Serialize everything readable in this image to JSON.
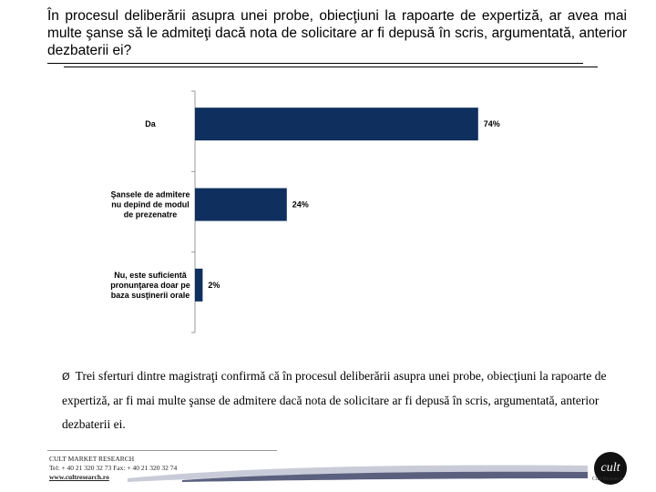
{
  "title": "În procesul deliberării asupra unei probe, obiecţiuni la rapoarte de expertiză, ar avea mai multe şanse să le admiteţi dacă nota de solicitare ar fi depusă în scris, argumentată, anterior dezbaterii ei?",
  "chart_data": {
    "type": "bar",
    "orientation": "horizontal",
    "categories": [
      [
        "Da"
      ],
      [
        "Şansele de admitere",
        "nu depind de modul",
        "de prezenatre"
      ],
      [
        "Nu, este suficientă",
        "pronunţarea doar pe",
        "baza susţinerii orale"
      ]
    ],
    "values": [
      74,
      24,
      2
    ],
    "value_labels": [
      "74%",
      "24%",
      "2%"
    ],
    "xlim": [
      0,
      100
    ],
    "bar_color": "#0f2f5e"
  },
  "note": {
    "bullet": "Ø",
    "text": "Trei sferturi dintre magistraţi confirmă că în procesul deliberării asupra unei probe, obiecţiuni la rapoarte de expertiză, ar fi mai multe şanse de admitere dacă nota de solicitare ar fi depusă în scris, argumentată, anterior dezbaterii ei."
  },
  "footer": {
    "company": "CULT MARKET RESEARCH",
    "contact": "Tel: + 40 21 320 32 73   Fax: + 40 21 320 32 74",
    "website": "www.cultresearch.ro",
    "logo_caption": "Cult Research"
  }
}
